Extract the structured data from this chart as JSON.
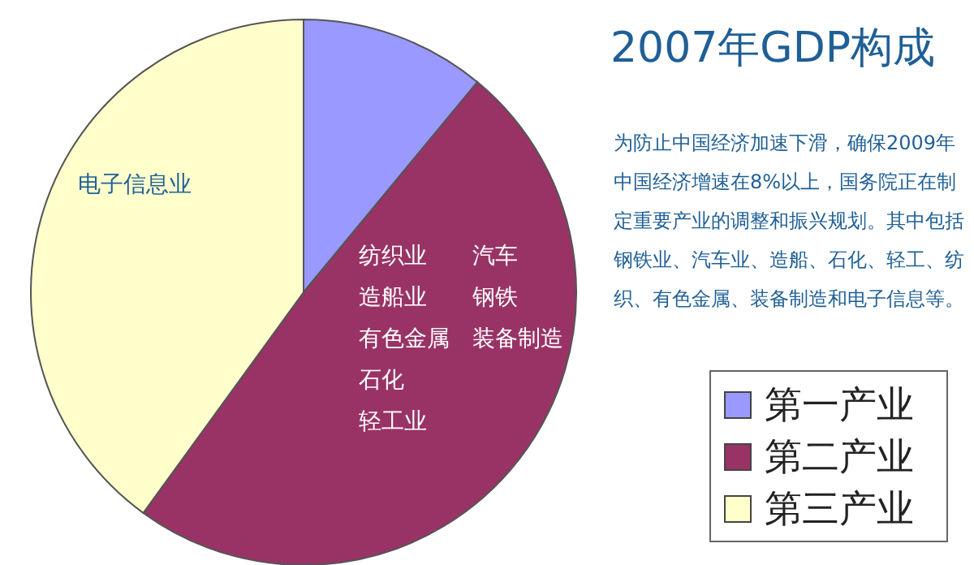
{
  "chart_data": {
    "type": "pie",
    "title": "2007年GDP构成",
    "categories": [
      "第一产业",
      "第二产业",
      "第三产业"
    ],
    "values": [
      11,
      49,
      40
    ],
    "colors": [
      "#9999ff",
      "#993366",
      "#ffffcc"
    ],
    "legend": "bottom right",
    "annotations": [
      "为防止中国经济加速下滑，确保2009年中国经济增速在8%以上，国务院正在制定重要产业的调整和振兴规划。其中包括钢铁业、汽车业、造船、石化、轻工、纺织、有色金属、装备制造和电子信息等。",
      "电子信息业",
      "纺织业",
      "汽车",
      "造船业",
      "钢铁",
      "有色金属",
      "装备制造",
      "石化",
      "轻工业"
    ]
  }
}
